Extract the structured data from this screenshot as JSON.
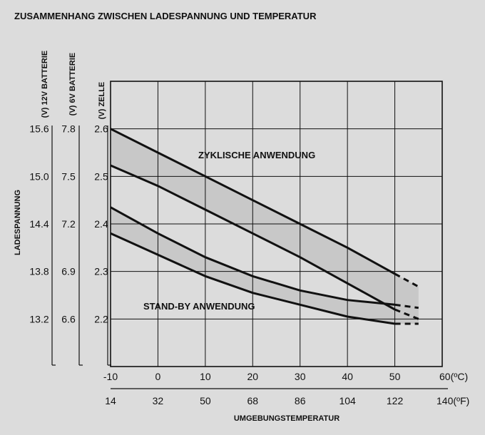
{
  "chart_data": {
    "type": "area",
    "title": "ZUSAMMENHANG ZWISCHEN LADESPANNUNG UND TEMPERATUR",
    "xlabel": "UMGEBUNGSTEMPERATUR",
    "ylabel": "LADESPANNUNG",
    "x_unit_c": "60(ºC)",
    "x_unit_f": "140(ºF)",
    "x_ticks_c": [
      "-10",
      "0",
      "10",
      "20",
      "30",
      "40",
      "50"
    ],
    "x_ticks_f": [
      "14",
      "32",
      "50",
      "68",
      "86",
      "104",
      "122"
    ],
    "xlim": [
      -10,
      60
    ],
    "y_axes": [
      {
        "name": "(V) ZELLE",
        "ticks": [
          "2.6",
          "2.5",
          "2.4",
          "2.3",
          "2.2"
        ],
        "values": [
          2.6,
          2.5,
          2.4,
          2.3,
          2.2
        ]
      },
      {
        "name": "(V) 6V BATTERIE",
        "ticks": [
          "7.8",
          "7.5",
          "7.2",
          "6.9",
          "6.6"
        ],
        "values": [
          7.8,
          7.5,
          7.2,
          6.9,
          6.6
        ]
      },
      {
        "name": "(V) 12V BATTERIE",
        "ticks": [
          "15.6",
          "15.0",
          "14.4",
          "13.8",
          "13.2"
        ],
        "values": [
          15.6,
          15.0,
          14.4,
          13.8,
          13.2
        ]
      }
    ],
    "ylim": [
      2.1,
      2.7
    ],
    "grid": true,
    "bands": [
      {
        "name": "ZYKLISCHE ANWENDUNG",
        "upper": {
          "x": [
            -10,
            0,
            10,
            20,
            30,
            40,
            50
          ],
          "y": [
            2.6,
            2.55,
            2.5,
            2.45,
            2.4,
            2.35,
            2.295
          ]
        },
        "lower": {
          "x": [
            -10,
            0,
            10,
            20,
            30,
            40,
            50
          ],
          "y": [
            2.523,
            2.48,
            2.43,
            2.38,
            2.33,
            2.275,
            2.22
          ]
        },
        "upper_dashed": {
          "x": [
            50,
            55
          ],
          "y": [
            2.295,
            2.268
          ]
        },
        "lower_dashed": {
          "x": [
            50,
            55
          ],
          "y": [
            2.22,
            2.2
          ]
        }
      },
      {
        "name": "STAND-BY ANWENDUNG",
        "upper": {
          "x": [
            -10,
            0,
            10,
            20,
            30,
            40,
            50
          ],
          "y": [
            2.435,
            2.38,
            2.33,
            2.29,
            2.26,
            2.24,
            2.23
          ]
        },
        "lower": {
          "x": [
            -10,
            0,
            10,
            20,
            30,
            40,
            50
          ],
          "y": [
            2.38,
            2.335,
            2.29,
            2.255,
            2.23,
            2.205,
            2.19
          ]
        },
        "upper_dashed": {
          "x": [
            50,
            55
          ],
          "y": [
            2.23,
            2.2235
          ]
        },
        "lower_dashed": {
          "x": [
            50,
            55
          ],
          "y": [
            2.19,
            2.19
          ]
        }
      }
    ]
  }
}
